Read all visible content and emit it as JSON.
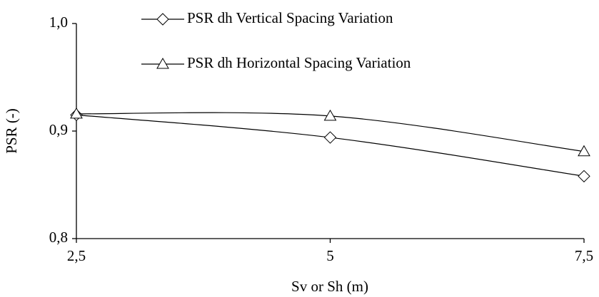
{
  "chart_data": {
    "type": "line",
    "x_label": "Sv or Sh (m)",
    "y_label": "PSR (-)",
    "x": [
      2.5,
      5,
      7.5
    ],
    "series": [
      {
        "name": "PSR dh Vertical Spacing Variation",
        "color": "#000000",
        "marker": "diamond",
        "values": [
          0.915,
          0.894,
          0.858
        ]
      },
      {
        "name": "PSR dh Horizontal Spacing Variation",
        "color": "#000000",
        "marker": "triangle",
        "values": [
          0.916,
          0.914,
          0.881
        ]
      }
    ],
    "xlim": [
      2.5,
      7.5
    ],
    "xticks": [
      {
        "value": 2.5,
        "label": "2,5"
      },
      5,
      {
        "value": 7.5,
        "label": "7,5"
      }
    ],
    "ylim": [
      0.8,
      1.0
    ],
    "yticks": [
      {
        "value": 0.8,
        "label": "0,8"
      },
      {
        "value": 0.9,
        "label": "0,9"
      },
      {
        "value": 1.0,
        "label": "1,0"
      }
    ],
    "grid": false,
    "legend": "top"
  }
}
